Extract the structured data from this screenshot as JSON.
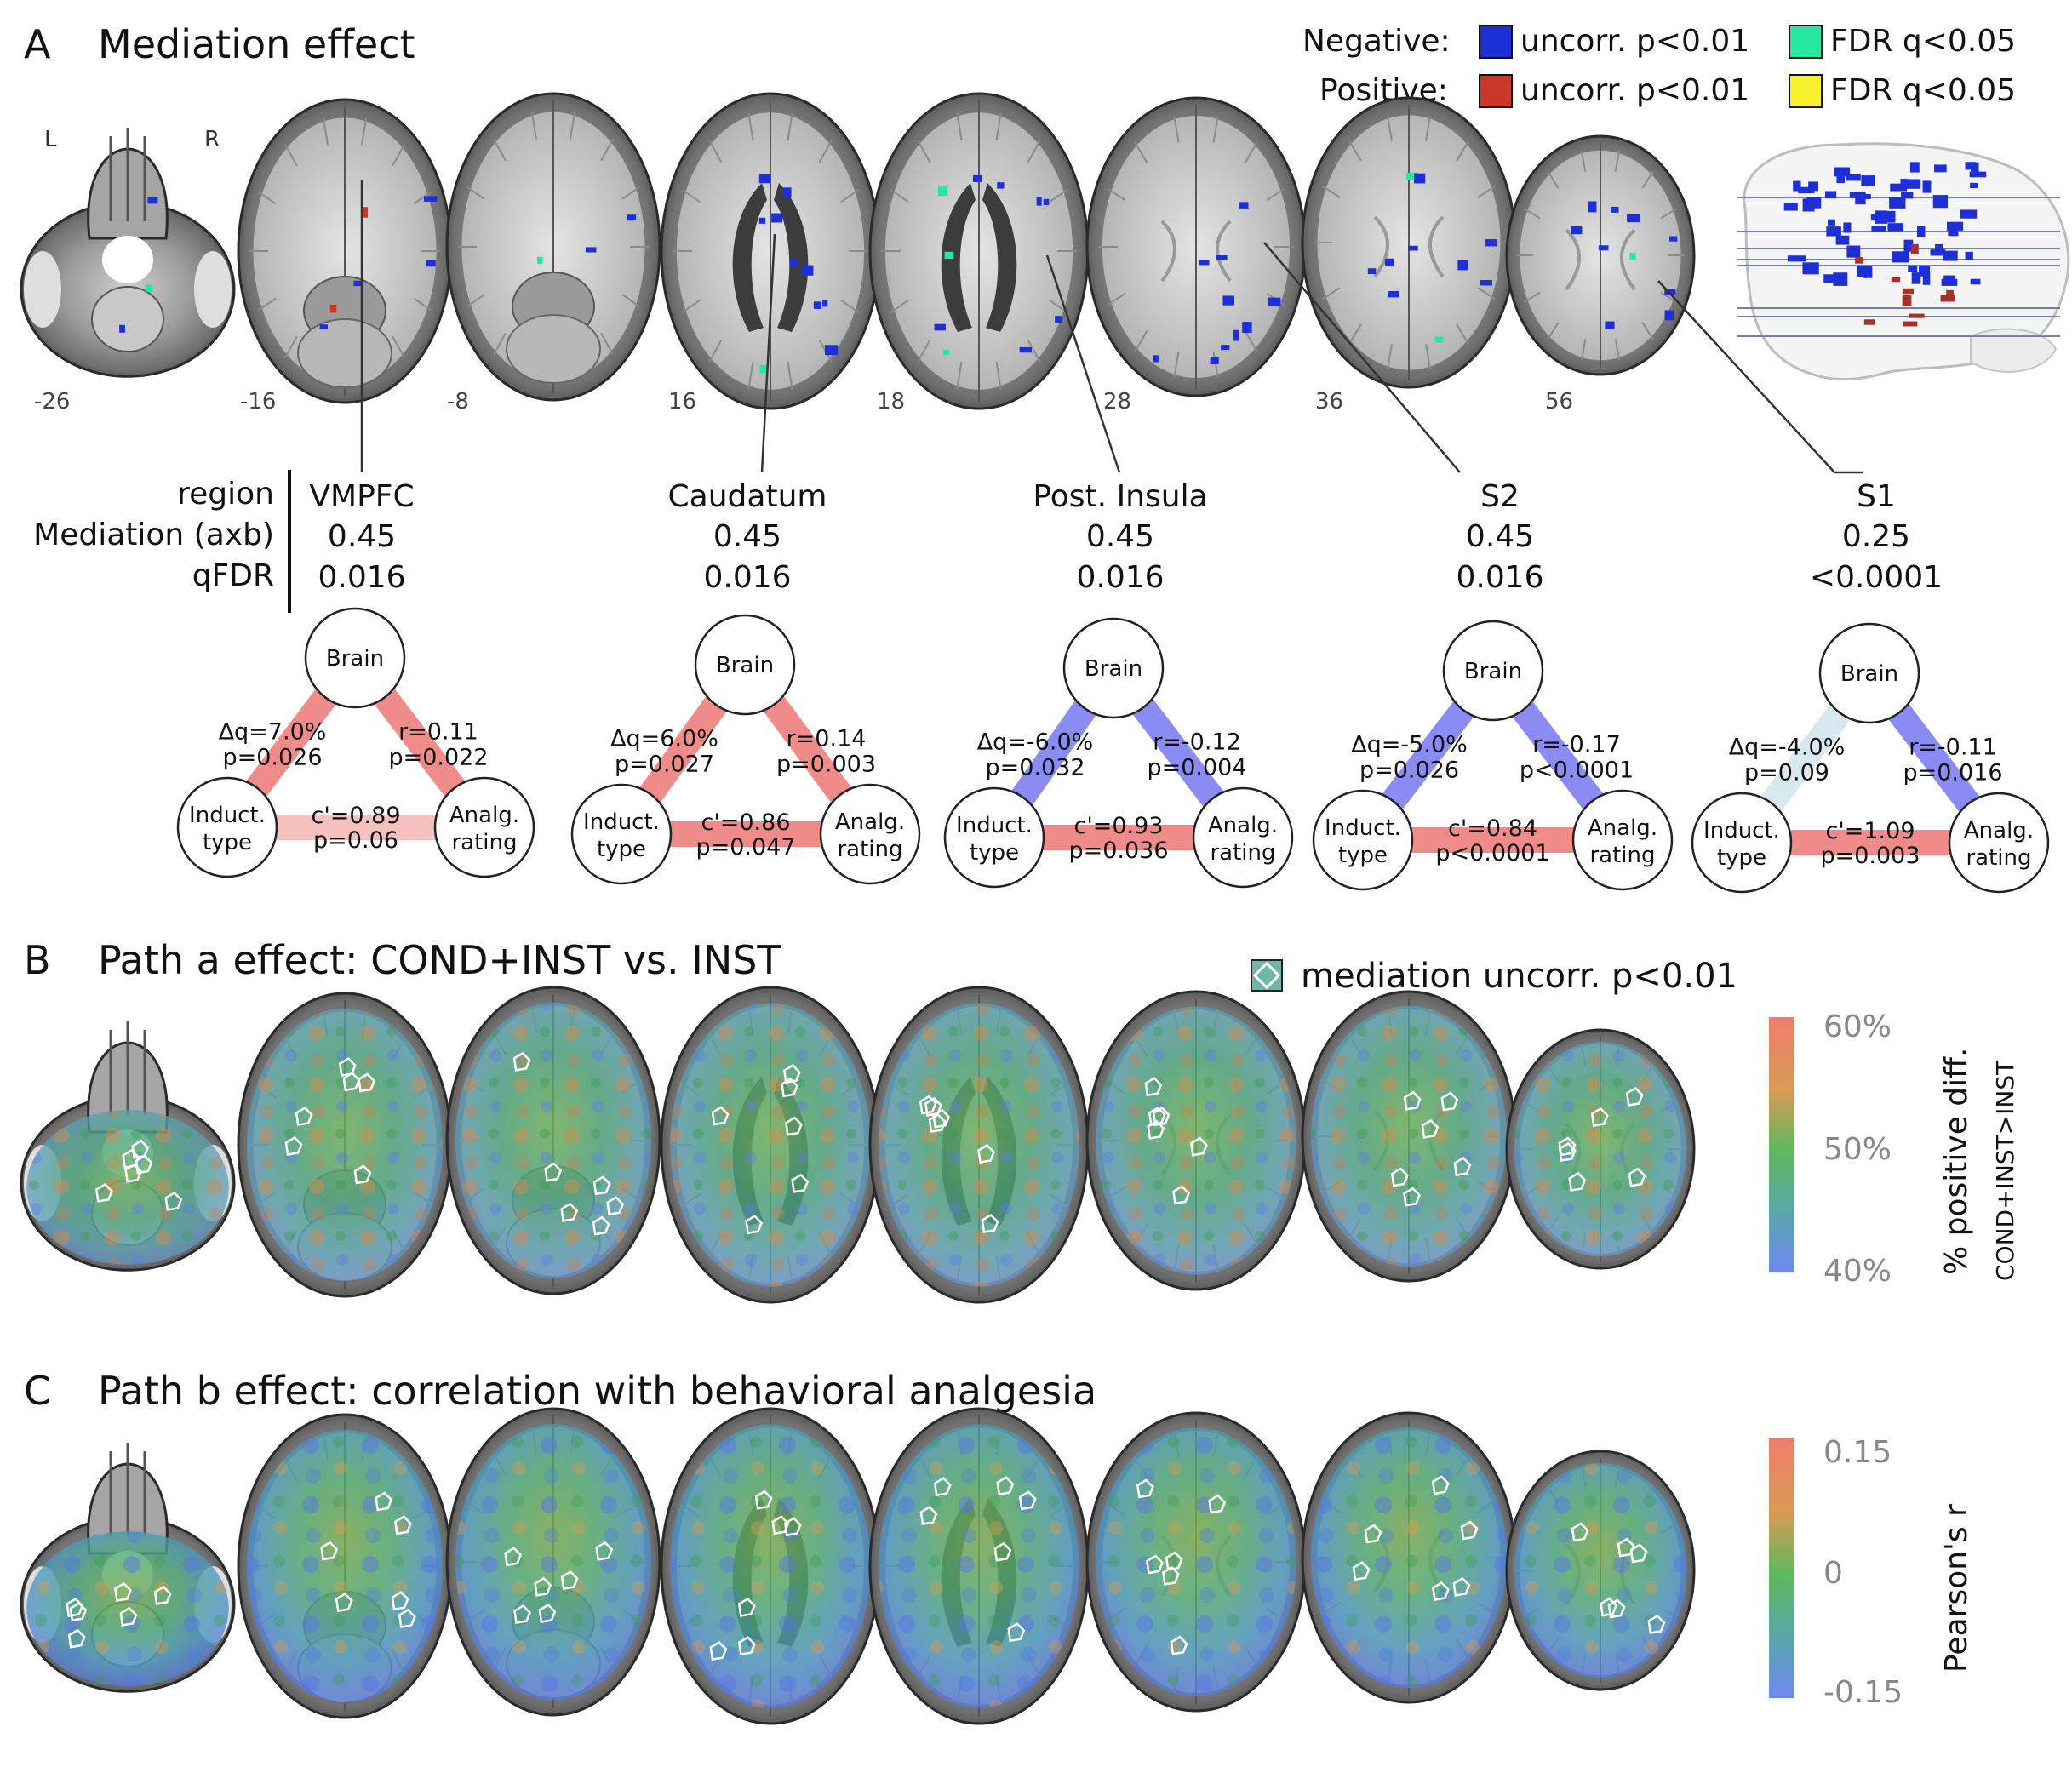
{
  "panel_a": {
    "letter": "A",
    "title": "Mediation effect",
    "legend": {
      "negative_label": "Negative:",
      "positive_label": "Positive:",
      "items": [
        {
          "label": "uncorr. p<0.01",
          "color": "#1f2fd6",
          "sign": "negative"
        },
        {
          "label": "FDR q<0.05",
          "color": "#27e8a0",
          "sign": "negative"
        },
        {
          "label": "uncorr. p<0.01",
          "color": "#c8372a",
          "sign": "positive"
        },
        {
          "label": "FDR q<0.05",
          "color": "#f8f22c",
          "sign": "positive"
        }
      ]
    },
    "orientation": {
      "left": "L",
      "right": "R"
    },
    "slice_labels": [
      "-26",
      "-16",
      "-8",
      "16",
      "18",
      "28",
      "36",
      "56"
    ],
    "row_headers": [
      "region",
      "Mediation (axb)",
      "qFDR"
    ],
    "regions": [
      {
        "name": "VMPFC",
        "mediation": "0.45",
        "qfdr": "0.016",
        "a_label": "Δq=7.0%",
        "a_p": "p=0.026",
        "b_label": "r=0.11",
        "b_p": "p=0.022",
        "c_label": "c'=0.89",
        "c_p": "p=0.06",
        "a_color": "#ef8c8a",
        "b_color": "#ef8c8a",
        "c_color": "#f4c1bf"
      },
      {
        "name": "Caudatum",
        "mediation": "0.45",
        "qfdr": "0.016",
        "a_label": "Δq=6.0%",
        "a_p": "p=0.027",
        "b_label": "r=0.14",
        "b_p": "p=0.003",
        "c_label": "c'=0.86",
        "c_p": "p=0.047",
        "a_color": "#ef8c8a",
        "b_color": "#ef8c8a",
        "c_color": "#ef8c8a"
      },
      {
        "name": "Post. Insula",
        "mediation": "0.45",
        "qfdr": "0.016",
        "a_label": "Δq=-6.0%",
        "a_p": "p=0.032",
        "b_label": "r=-0.12",
        "b_p": "p=0.004",
        "c_label": "c'=0.93",
        "c_p": "p=0.036",
        "a_color": "#8a8cf4",
        "b_color": "#8a8cf4",
        "c_color": "#ef8c8a"
      },
      {
        "name": "S2",
        "mediation": "0.45",
        "qfdr": "0.016",
        "a_label": "Δq=-5.0%",
        "a_p": "p=0.026",
        "b_label": "r=-0.17",
        "b_p": "p<0.0001",
        "c_label": "c'=0.84",
        "c_p": "p<0.0001",
        "a_color": "#8a8cf4",
        "b_color": "#8a8cf4",
        "c_color": "#ef8c8a"
      },
      {
        "name": "S1",
        "mediation": "0.25",
        "qfdr": "<0.0001",
        "a_label": "Δq=-4.0%",
        "a_p": "p=0.09",
        "b_label": "r=-0.11",
        "b_p": "p=0.016",
        "c_label": "c'=1.09",
        "c_p": "p=0.003",
        "a_color": "#d8e8ef",
        "b_color": "#8a8cf4",
        "c_color": "#ef8c8a"
      }
    ],
    "node_labels": {
      "brain": "Brain",
      "induct_1": "Induct.",
      "induct_2": "type",
      "analg_1": "Analg.",
      "analg_2": "rating"
    }
  },
  "panel_b": {
    "letter": "B",
    "title": "Path a effect: COND+INST vs. INST",
    "overlay_legend": "mediation uncorr. p<0.01",
    "colorbar": {
      "ticks": [
        "60%",
        "50%",
        "40%"
      ],
      "label_1": "% positive diff.",
      "label_2": "COND+INST>INST"
    }
  },
  "panel_c": {
    "letter": "C",
    "title": "Path b effect: correlation with behavioral analgesia",
    "colorbar": {
      "ticks": [
        "0.15",
        "0",
        "-0.15"
      ],
      "label_1": "Pearson's r"
    }
  }
}
